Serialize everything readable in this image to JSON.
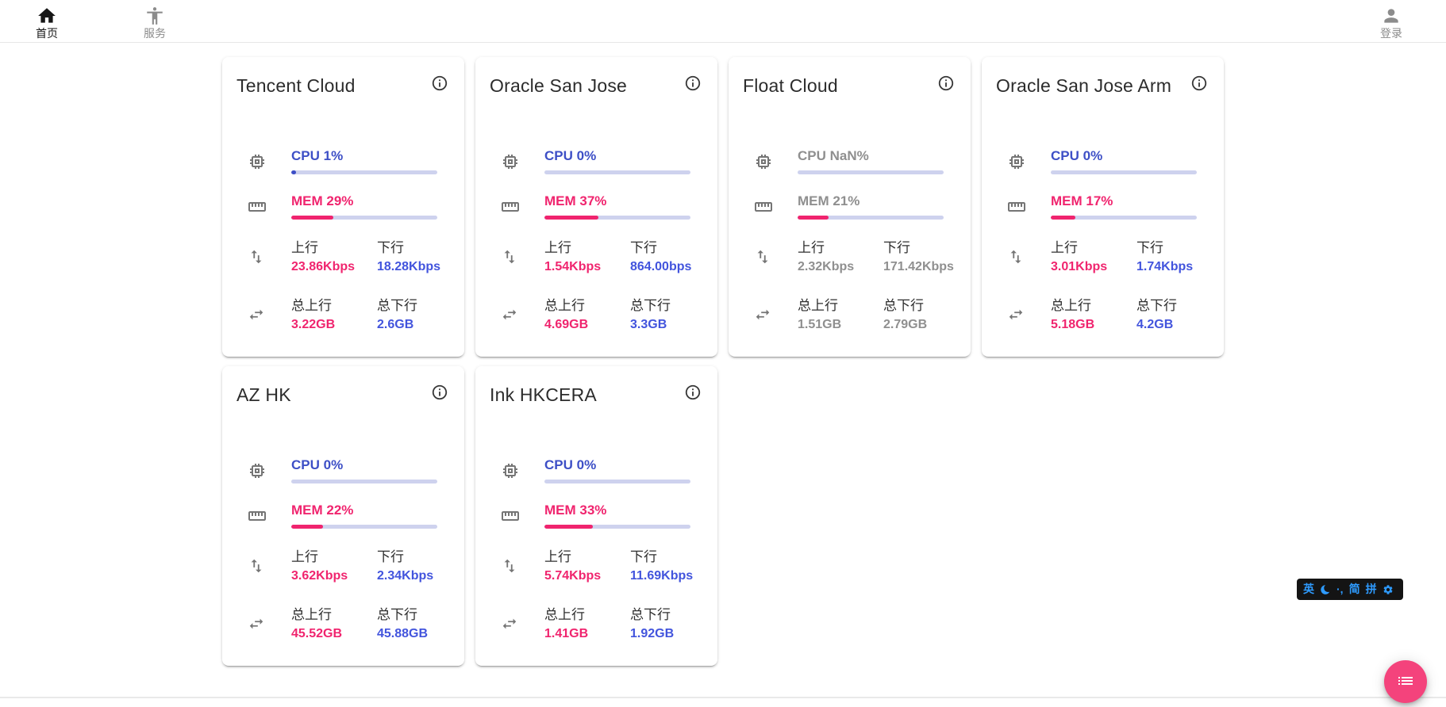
{
  "nav": {
    "items": [
      {
        "label": "首页",
        "icon": "home-icon",
        "active": true
      },
      {
        "label": "服务",
        "icon": "accessibility-icon",
        "active": false
      }
    ],
    "login_label": "登录",
    "login_icon": "person-icon"
  },
  "labels": {
    "cpu_prefix": "CPU",
    "mem_prefix": "MEM",
    "upload": "上行",
    "download": "下行",
    "total_upload": "总上行",
    "total_download": "总下行"
  },
  "servers": [
    {
      "name": "Tencent Cloud",
      "cpu": "1%",
      "cpu_pct": 1,
      "mem": "29%",
      "mem_pct": 29,
      "up": "23.86Kbps",
      "down": "18.28Kbps",
      "total_up": "3.22GB",
      "total_down": "2.6GB",
      "online": true
    },
    {
      "name": "Oracle San Jose",
      "cpu": "0%",
      "cpu_pct": 0,
      "mem": "37%",
      "mem_pct": 37,
      "up": "1.54Kbps",
      "down": "864.00bps",
      "total_up": "4.69GB",
      "total_down": "3.3GB",
      "online": true
    },
    {
      "name": "Float Cloud",
      "cpu": "NaN%",
      "cpu_pct": null,
      "mem": "21%",
      "mem_pct": 21,
      "up": "2.32Kbps",
      "down": "171.42Kbps",
      "total_up": "1.51GB",
      "total_down": "2.79GB",
      "online": false
    },
    {
      "name": "Oracle San Jose Arm",
      "cpu": "0%",
      "cpu_pct": 0,
      "mem": "17%",
      "mem_pct": 17,
      "up": "3.01Kbps",
      "down": "1.74Kbps",
      "total_up": "5.18GB",
      "total_down": "4.2GB",
      "online": true
    },
    {
      "name": "AZ HK",
      "cpu": "0%",
      "cpu_pct": 0,
      "mem": "22%",
      "mem_pct": 22,
      "up": "3.62Kbps",
      "down": "2.34Kbps",
      "total_up": "45.52GB",
      "total_down": "45.88GB",
      "online": true
    },
    {
      "name": "Ink HKCERA",
      "cpu": "0%",
      "cpu_pct": 0,
      "mem": "33%",
      "mem_pct": 33,
      "up": "5.74Kbps",
      "down": "11.69Kbps",
      "total_up": "1.41GB",
      "total_down": "1.92GB",
      "online": true
    }
  ],
  "ime_bar": {
    "english": "英",
    "moon_icon": "moon-icon",
    "punctuation": "·,",
    "simplified": "简",
    "pinyin": "拼",
    "settings_icon": "gear-icon"
  },
  "fab": {
    "icon": "list-icon"
  },
  "colors": {
    "cpu_blue": "#3d4fc6",
    "value_blue": "#4254dd",
    "mem_pink": "#f0246e",
    "value_pink": "#f0246e",
    "bar_track": "#ced2ee",
    "offline_gray": "#8f8f8f",
    "icon_gray": "#757575",
    "fab_pink": "#f4437c",
    "ime_blue": "#2e9bff"
  }
}
